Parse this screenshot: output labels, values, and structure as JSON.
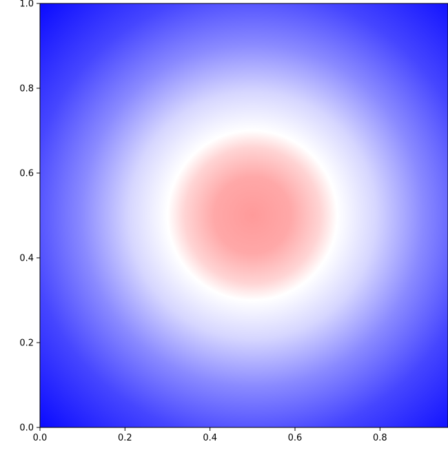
{
  "chart_data": {
    "type": "heatmap",
    "title": "",
    "xlabel": "",
    "ylabel": "",
    "xlim": [
      0.0,
      0.96
    ],
    "ylim": [
      0.0,
      1.0
    ],
    "xticks": [
      0.0,
      0.2,
      0.4,
      0.6,
      0.8
    ],
    "yticks": [
      0.0,
      0.2,
      0.4,
      0.6,
      0.8,
      1.0
    ],
    "xtick_labels": [
      "0.0",
      "0.2",
      "0.4",
      "0.6",
      "0.8"
    ],
    "ytick_labels": [
      "0.0",
      "0.2",
      "0.4",
      "0.6",
      "0.8",
      "1.0"
    ],
    "grid": false,
    "colormap": "bwr",
    "field": {
      "description_of_function": "radial field centered at (0.5, 0.5)",
      "center": [
        0.5,
        0.5
      ],
      "red_disk_radius": 0.2,
      "white_ring_radius": 0.2,
      "edge_color": "#0a0aff",
      "white_color": "#ffffff",
      "disk_center_color": "#ff9a9a"
    }
  }
}
